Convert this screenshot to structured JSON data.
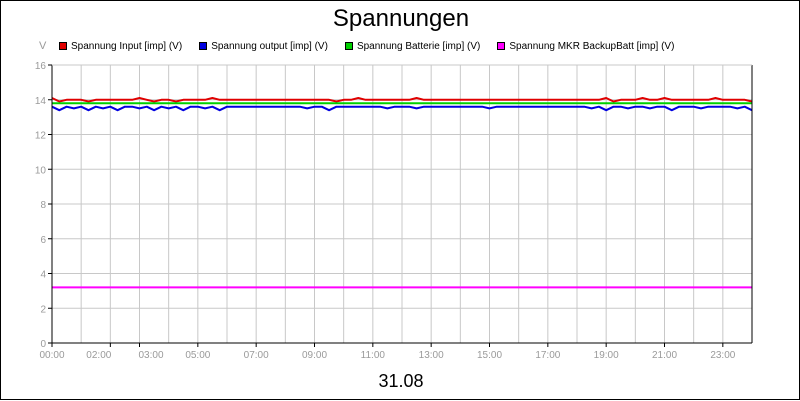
{
  "chart_data": {
    "type": "line",
    "title": "Spannungen",
    "xlabel": "31.08",
    "ylabel": "V",
    "ylim": [
      0,
      16
    ],
    "y_ticks": [
      "0",
      "2",
      "4",
      "6",
      "8",
      "10",
      "12",
      "14",
      "16"
    ],
    "x_ticks": [
      "00:00",
      "02:00",
      "03:00",
      "05:00",
      "07:00",
      "09:00",
      "11:00",
      "13:00",
      "15:00",
      "17:00",
      "19:00",
      "21:00",
      "23:00"
    ],
    "x_tick_hours": [
      0,
      2,
      3,
      5,
      7,
      9,
      11,
      13,
      15,
      17,
      19,
      21,
      23
    ],
    "x_gridline_hours": [
      0,
      1,
      2,
      3,
      4,
      5,
      6,
      7,
      8,
      9,
      10,
      11,
      12,
      13,
      14,
      15,
      16,
      17,
      18,
      19,
      20,
      21,
      22,
      23
    ],
    "xlim_hours": [
      0,
      24
    ],
    "grid": true,
    "legend_position": "top",
    "series": [
      {
        "name": "Spannung Input [imp] (V)",
        "color": "#e00000",
        "x_hours": [
          0,
          0.25,
          0.5,
          0.75,
          1,
          1.25,
          1.5,
          1.75,
          2,
          2.25,
          2.5,
          2.75,
          3,
          3.25,
          3.5,
          3.75,
          4,
          4.25,
          4.5,
          4.75,
          5,
          5.25,
          5.5,
          5.75,
          6,
          6.25,
          6.5,
          6.75,
          7,
          7.25,
          7.5,
          7.75,
          8,
          8.25,
          8.5,
          8.75,
          9,
          9.25,
          9.5,
          9.75,
          10,
          10.25,
          10.5,
          10.75,
          11,
          11.25,
          11.5,
          11.75,
          12,
          12.25,
          12.5,
          12.75,
          13,
          13.25,
          13.5,
          13.75,
          14,
          14.25,
          14.5,
          14.75,
          15,
          15.25,
          15.5,
          15.75,
          16,
          16.25,
          16.5,
          16.75,
          17,
          17.25,
          17.5,
          17.75,
          18,
          18.25,
          18.5,
          18.75,
          19,
          19.25,
          19.5,
          19.75,
          20,
          20.25,
          20.5,
          20.75,
          21,
          21.25,
          21.5,
          21.75,
          22,
          22.25,
          22.5,
          22.75,
          23,
          23.25,
          23.5,
          23.75,
          24
        ],
        "values": [
          14.1,
          13.9,
          14.0,
          14.0,
          14.0,
          13.9,
          14.0,
          14.0,
          14.0,
          14.0,
          14.0,
          14.0,
          14.1,
          14.0,
          13.9,
          14.0,
          14.0,
          13.9,
          14.0,
          14.0,
          14.0,
          14.0,
          14.1,
          14.0,
          14.0,
          14.0,
          14.0,
          14.0,
          14.0,
          14.0,
          14.0,
          14.0,
          14.0,
          14.0,
          14.0,
          14.0,
          14.0,
          14.0,
          14.0,
          13.9,
          14.0,
          14.0,
          14.1,
          14.0,
          14.0,
          14.0,
          14.0,
          14.0,
          14.0,
          14.0,
          14.1,
          14.0,
          14.0,
          14.0,
          14.0,
          14.0,
          14.0,
          14.0,
          14.0,
          14.0,
          14.0,
          14.0,
          14.0,
          14.0,
          14.0,
          14.0,
          14.0,
          14.0,
          14.0,
          14.0,
          14.0,
          14.0,
          14.0,
          14.0,
          14.0,
          14.0,
          14.1,
          13.9,
          14.0,
          14.0,
          14.0,
          14.1,
          14.0,
          14.0,
          14.1,
          14.0,
          14.0,
          14.0,
          14.0,
          14.0,
          14.0,
          14.1,
          14.0,
          14.0,
          14.0,
          14.0,
          13.9
        ]
      },
      {
        "name": "Spannung output [imp] (V)",
        "color": "#0000e0",
        "x_hours": [
          0,
          0.25,
          0.5,
          0.75,
          1,
          1.25,
          1.5,
          1.75,
          2,
          2.25,
          2.5,
          2.75,
          3,
          3.25,
          3.5,
          3.75,
          4,
          4.25,
          4.5,
          4.75,
          5,
          5.25,
          5.5,
          5.75,
          6,
          6.25,
          6.5,
          6.75,
          7,
          7.25,
          7.5,
          7.75,
          8,
          8.25,
          8.5,
          8.75,
          9,
          9.25,
          9.5,
          9.75,
          10,
          10.25,
          10.5,
          10.75,
          11,
          11.25,
          11.5,
          11.75,
          12,
          12.25,
          12.5,
          12.75,
          13,
          13.25,
          13.5,
          13.75,
          14,
          14.25,
          14.5,
          14.75,
          15,
          15.25,
          15.5,
          15.75,
          16,
          16.25,
          16.5,
          16.75,
          17,
          17.25,
          17.5,
          17.75,
          18,
          18.25,
          18.5,
          18.75,
          19,
          19.25,
          19.5,
          19.75,
          20,
          20.25,
          20.5,
          20.75,
          21,
          21.25,
          21.5,
          21.75,
          22,
          22.25,
          22.5,
          22.75,
          23,
          23.25,
          23.5,
          23.75,
          24
        ],
        "values": [
          13.6,
          13.4,
          13.6,
          13.5,
          13.6,
          13.4,
          13.6,
          13.5,
          13.6,
          13.4,
          13.6,
          13.6,
          13.5,
          13.6,
          13.4,
          13.6,
          13.5,
          13.6,
          13.4,
          13.6,
          13.6,
          13.5,
          13.6,
          13.4,
          13.6,
          13.6,
          13.6,
          13.6,
          13.6,
          13.6,
          13.6,
          13.6,
          13.6,
          13.6,
          13.6,
          13.5,
          13.6,
          13.6,
          13.4,
          13.6,
          13.6,
          13.6,
          13.6,
          13.6,
          13.6,
          13.6,
          13.5,
          13.6,
          13.6,
          13.6,
          13.5,
          13.6,
          13.6,
          13.6,
          13.6,
          13.6,
          13.6,
          13.6,
          13.6,
          13.6,
          13.5,
          13.6,
          13.6,
          13.6,
          13.6,
          13.6,
          13.6,
          13.6,
          13.6,
          13.6,
          13.6,
          13.6,
          13.6,
          13.6,
          13.5,
          13.6,
          13.4,
          13.6,
          13.6,
          13.5,
          13.6,
          13.6,
          13.5,
          13.6,
          13.6,
          13.4,
          13.6,
          13.6,
          13.6,
          13.5,
          13.6,
          13.6,
          13.6,
          13.6,
          13.5,
          13.6,
          13.4
        ]
      },
      {
        "name": "Spannung Batterie [imp] (V)",
        "color": "#00d000",
        "x_hours": [
          0,
          0.25,
          0.5,
          0.75,
          1,
          1.25,
          1.5,
          1.75,
          2,
          2.25,
          2.5,
          2.75,
          3,
          3.25,
          3.5,
          3.75,
          4,
          4.25,
          4.5,
          4.75,
          5,
          5.25,
          5.5,
          5.75,
          6,
          6.25,
          6.5,
          6.75,
          7,
          7.25,
          7.5,
          7.75,
          8,
          8.25,
          8.5,
          8.75,
          9,
          9.25,
          9.5,
          9.75,
          10,
          10.25,
          10.5,
          10.75,
          11,
          11.25,
          11.5,
          11.75,
          12,
          12.25,
          12.5,
          12.75,
          13,
          13.25,
          13.5,
          13.75,
          14,
          14.25,
          14.5,
          14.75,
          15,
          15.25,
          15.5,
          15.75,
          16,
          16.25,
          16.5,
          16.75,
          17,
          17.25,
          17.5,
          17.75,
          18,
          18.25,
          18.5,
          18.75,
          19,
          19.25,
          19.5,
          19.75,
          20,
          20.25,
          20.5,
          20.75,
          21,
          21.25,
          21.5,
          21.75,
          22,
          22.25,
          22.5,
          22.75,
          23,
          23.25,
          23.5,
          23.75,
          24
        ],
        "values": [
          13.8,
          13.8,
          13.8,
          13.8,
          13.8,
          13.8,
          13.8,
          13.8,
          13.8,
          13.8,
          13.8,
          13.8,
          13.8,
          13.8,
          13.8,
          13.8,
          13.8,
          13.8,
          13.8,
          13.8,
          13.8,
          13.8,
          13.8,
          13.8,
          13.8,
          13.8,
          13.8,
          13.8,
          13.8,
          13.8,
          13.8,
          13.8,
          13.8,
          13.8,
          13.8,
          13.8,
          13.8,
          13.8,
          13.8,
          13.8,
          13.8,
          13.8,
          13.8,
          13.8,
          13.8,
          13.8,
          13.8,
          13.8,
          13.8,
          13.8,
          13.8,
          13.8,
          13.8,
          13.8,
          13.8,
          13.8,
          13.8,
          13.8,
          13.8,
          13.8,
          13.8,
          13.8,
          13.8,
          13.8,
          13.8,
          13.8,
          13.8,
          13.8,
          13.8,
          13.8,
          13.8,
          13.8,
          13.8,
          13.8,
          13.8,
          13.8,
          13.8,
          13.8,
          13.8,
          13.8,
          13.8,
          13.8,
          13.8,
          13.8,
          13.8,
          13.8,
          13.8,
          13.8,
          13.8,
          13.8,
          13.8,
          13.8,
          13.8,
          13.8,
          13.8,
          13.8,
          13.8
        ]
      },
      {
        "name": "Spannung MKR BackupBatt [imp] (V)",
        "color": "#ff00ff",
        "x_hours": [
          0,
          24
        ],
        "values": [
          3.2,
          3.2
        ]
      }
    ]
  }
}
